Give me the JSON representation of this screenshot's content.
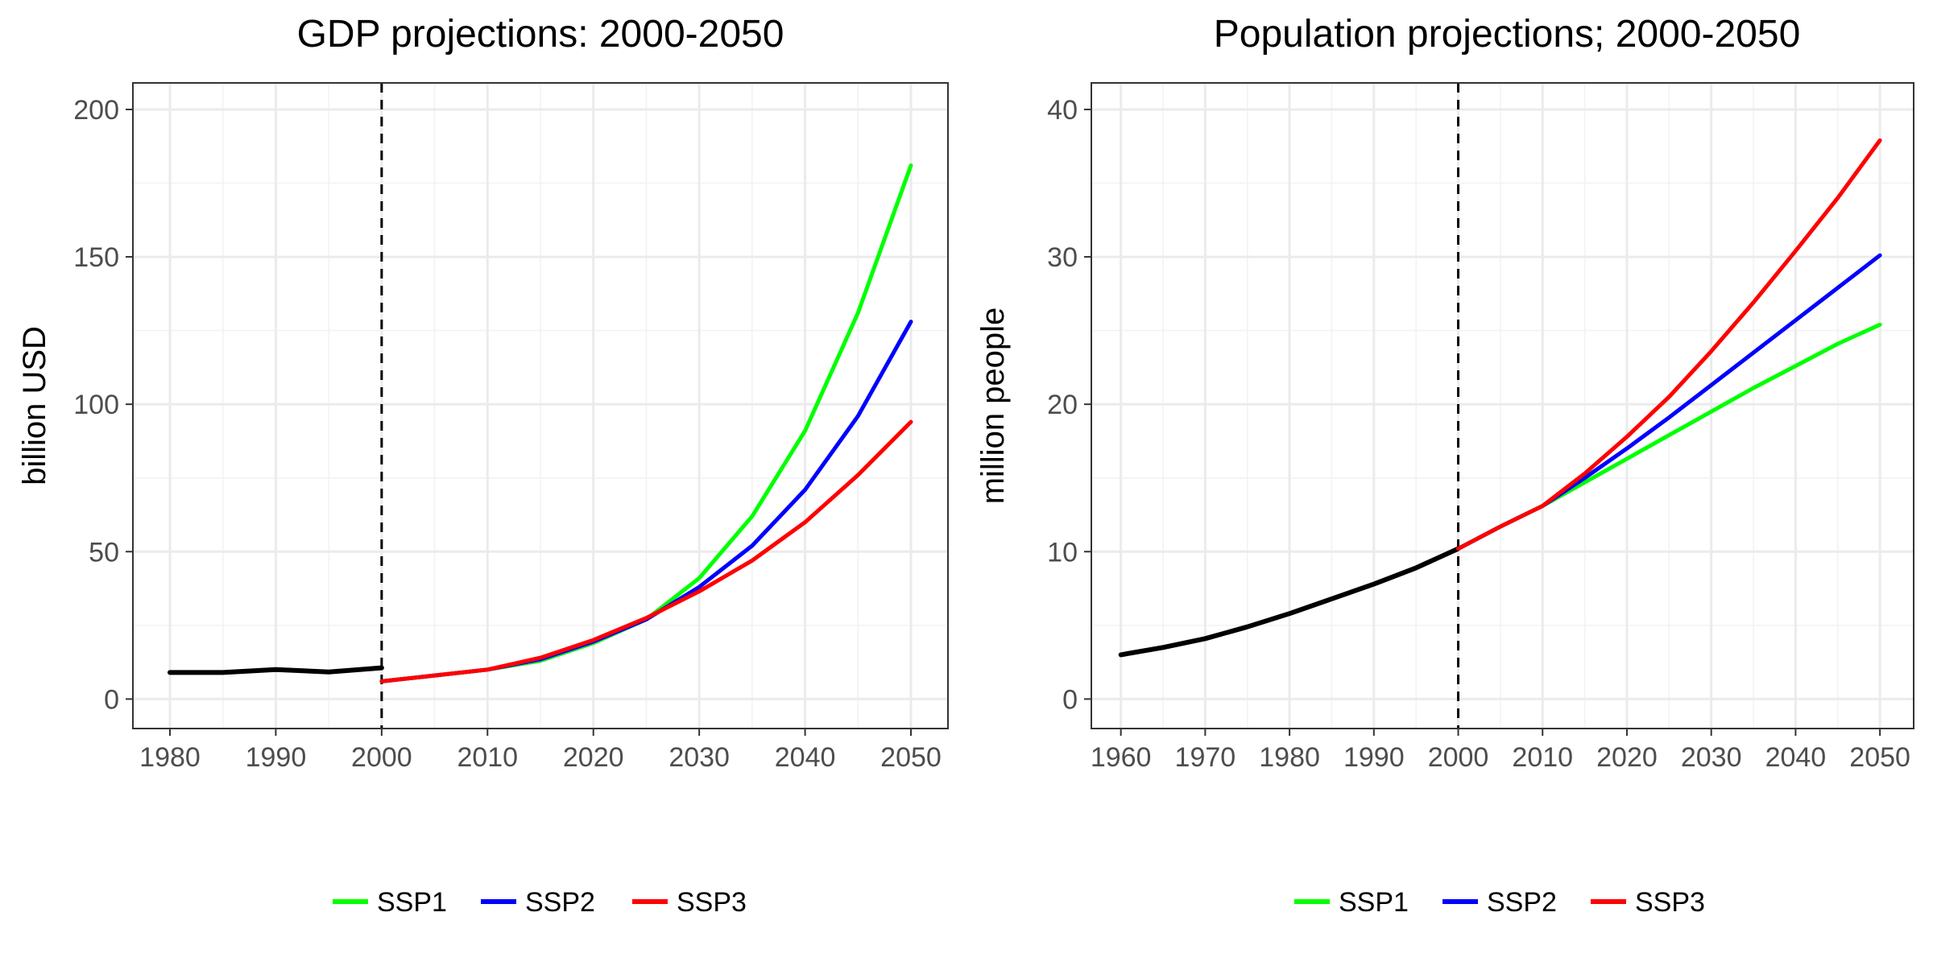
{
  "chart_data": [
    {
      "type": "line",
      "title": "GDP projections: 2000-2050",
      "xlabel": "",
      "ylabel": "billion USD",
      "xlim": [
        1976.5,
        2053.5
      ],
      "ylim": [
        -10,
        209
      ],
      "xticks": [
        1980,
        1990,
        2000,
        2010,
        2020,
        2030,
        2040,
        2050
      ],
      "yticks": [
        0,
        50,
        100,
        150,
        200
      ],
      "grid": true,
      "vline": 2000,
      "historical": {
        "color": "#000000",
        "points": [
          [
            1980,
            9.0
          ],
          [
            1985,
            9.0
          ],
          [
            1990,
            10.0
          ],
          [
            1995,
            9.2
          ],
          [
            2000,
            10.6
          ]
        ]
      },
      "series": [
        {
          "name": "SSP1",
          "color": "#00ff00",
          "points": [
            [
              2000,
              6.0
            ],
            [
              2005,
              8.0
            ],
            [
              2010,
              10.0
            ],
            [
              2015,
              13.0
            ],
            [
              2020,
              19.0
            ],
            [
              2025,
              27.0
            ],
            [
              2030,
              41.0
            ],
            [
              2035,
              62.0
            ],
            [
              2040,
              91.0
            ],
            [
              2045,
              131.0
            ],
            [
              2050,
              181.0
            ]
          ]
        },
        {
          "name": "SSP2",
          "color": "#0000ff",
          "points": [
            [
              2000,
              6.0
            ],
            [
              2005,
              8.0
            ],
            [
              2010,
              10.0
            ],
            [
              2015,
              13.5
            ],
            [
              2020,
              19.5
            ],
            [
              2025,
              27.0
            ],
            [
              2030,
              38.0
            ],
            [
              2035,
              52.0
            ],
            [
              2040,
              71.0
            ],
            [
              2045,
              96.0
            ],
            [
              2050,
              128.0
            ]
          ]
        },
        {
          "name": "SSP3",
          "color": "#ff0000",
          "points": [
            [
              2000,
              6.0
            ],
            [
              2005,
              8.0
            ],
            [
              2010,
              10.0
            ],
            [
              2015,
              14.0
            ],
            [
              2020,
              20.0
            ],
            [
              2025,
              27.5
            ],
            [
              2030,
              36.5
            ],
            [
              2035,
              47.0
            ],
            [
              2040,
              60.0
            ],
            [
              2045,
              76.0
            ],
            [
              2050,
              94.0
            ]
          ]
        }
      ]
    },
    {
      "type": "line",
      "title": "Population projections; 2000-2050",
      "xlabel": "",
      "ylabel": "million people",
      "xlim": [
        1956.5,
        2054.0
      ],
      "ylim": [
        -2.0,
        41.8
      ],
      "xticks": [
        1960,
        1970,
        1980,
        1990,
        2000,
        2010,
        2020,
        2030,
        2040,
        2050
      ],
      "yticks": [
        0,
        10,
        20,
        30,
        40
      ],
      "grid": true,
      "vline": 2000,
      "historical": {
        "color": "#000000",
        "points": [
          [
            1960,
            3.0
          ],
          [
            1965,
            3.5
          ],
          [
            1970,
            4.1
          ],
          [
            1975,
            4.9
          ],
          [
            1980,
            5.8
          ],
          [
            1985,
            6.8
          ],
          [
            1990,
            7.8
          ],
          [
            1995,
            8.9
          ],
          [
            2000,
            10.2
          ]
        ]
      },
      "series": [
        {
          "name": "SSP1",
          "color": "#00ff00",
          "points": [
            [
              2000,
              10.2
            ],
            [
              2005,
              11.7
            ],
            [
              2010,
              13.1
            ],
            [
              2015,
              14.7
            ],
            [
              2020,
              16.3
            ],
            [
              2025,
              17.9
            ],
            [
              2030,
              19.5
            ],
            [
              2035,
              21.1
            ],
            [
              2040,
              22.6
            ],
            [
              2045,
              24.1
            ],
            [
              2050,
              25.4
            ]
          ]
        },
        {
          "name": "SSP2",
          "color": "#0000ff",
          "points": [
            [
              2000,
              10.2
            ],
            [
              2005,
              11.7
            ],
            [
              2010,
              13.1
            ],
            [
              2015,
              15.0
            ],
            [
              2020,
              17.0
            ],
            [
              2025,
              19.1
            ],
            [
              2030,
              21.3
            ],
            [
              2035,
              23.5
            ],
            [
              2040,
              25.7
            ],
            [
              2045,
              27.9
            ],
            [
              2050,
              30.1
            ]
          ]
        },
        {
          "name": "SSP3",
          "color": "#ff0000",
          "points": [
            [
              2000,
              10.2
            ],
            [
              2005,
              11.7
            ],
            [
              2010,
              13.1
            ],
            [
              2015,
              15.3
            ],
            [
              2020,
              17.8
            ],
            [
              2025,
              20.5
            ],
            [
              2030,
              23.6
            ],
            [
              2035,
              26.9
            ],
            [
              2040,
              30.4
            ],
            [
              2045,
              34.0
            ],
            [
              2050,
              37.9
            ]
          ]
        }
      ]
    }
  ]
}
